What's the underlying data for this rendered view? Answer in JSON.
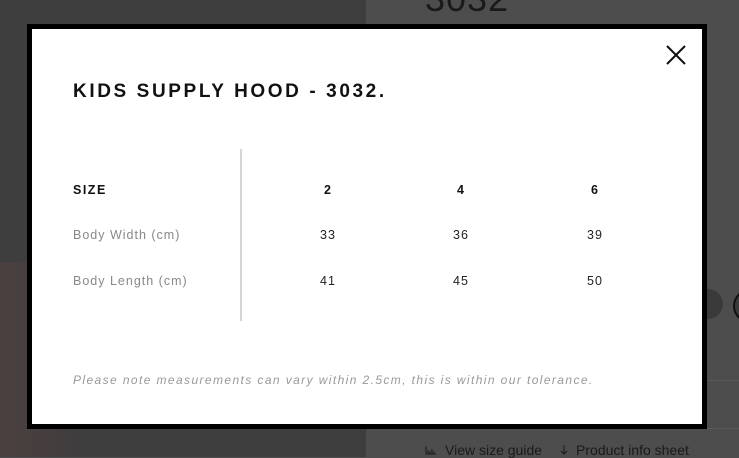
{
  "background": {
    "product_code": "3032",
    "links": [
      {
        "icon": "ruler-icon",
        "label": "View size guide"
      },
      {
        "icon": "download-arrow-icon",
        "label": "Product info sheet"
      }
    ]
  },
  "modal": {
    "title": "KIDS SUPPLY HOOD - 3032.",
    "close_icon": "close-icon",
    "table": {
      "header": {
        "label": "SIZE",
        "values": [
          "2",
          "4",
          "6"
        ]
      },
      "rows": [
        {
          "label": "Body Width (cm)",
          "values": [
            "33",
            "36",
            "39"
          ]
        },
        {
          "label": "Body Length (cm)",
          "values": [
            "41",
            "45",
            "50"
          ]
        }
      ]
    },
    "note": "Please note measurements can vary within 2.5cm, this is within our tolerance."
  }
}
